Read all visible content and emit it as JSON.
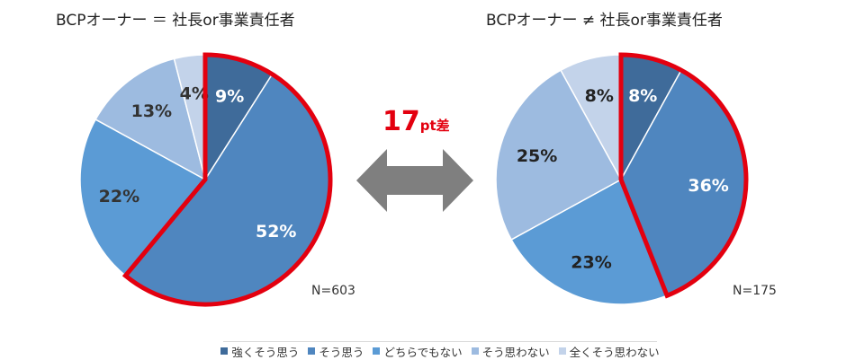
{
  "chart_data": [
    {
      "type": "pie",
      "title": "BCPオーナー ＝ 社長or事業責任者",
      "n_label": "N=603",
      "categories": [
        "強くそう思う",
        "そう思う",
        "どちらでもない",
        "そう思わない",
        "全くそう思わない"
      ],
      "values": [
        9,
        52,
        22,
        13,
        4
      ],
      "labels": [
        "9%",
        "52%",
        "22%",
        "13%",
        "4%"
      ],
      "highlight": [
        "強くそう思う",
        "そう思う"
      ]
    },
    {
      "type": "pie",
      "title": "BCPオーナー ≠ 社長or事業責任者",
      "n_label": "N=175",
      "categories": [
        "強くそう思う",
        "そう思う",
        "どちらでもない",
        "そう思わない",
        "全くそう思わない"
      ],
      "values": [
        8,
        36,
        23,
        25,
        8
      ],
      "labels": [
        "8%",
        "36%",
        "23%",
        "25%",
        "8%"
      ],
      "highlight": [
        "強くそう思う",
        "そう思う"
      ]
    }
  ],
  "colors": [
    "#3f6b9a",
    "#4f86bf",
    "#5b9bd5",
    "#9dbbe0",
    "#c3d3ea"
  ],
  "highlight_color": "#e3000f",
  "difference": {
    "number": "17",
    "unit": "pt差"
  },
  "legend": [
    "強くそう思う",
    "そう思う",
    "どちらでもない",
    "そう思わない",
    "全くそう思わない"
  ]
}
